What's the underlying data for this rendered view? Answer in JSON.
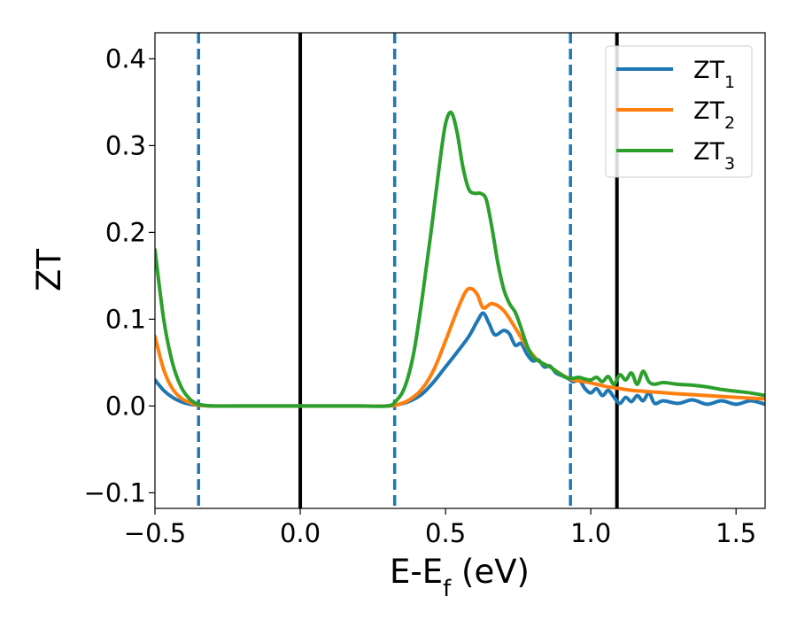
{
  "chart_data": {
    "type": "line",
    "title": "",
    "xlabel": "E-E",
    "xlabel_subscript": "f",
    "xlabel_unit": " (eV)",
    "ylabel": "ZT",
    "xlim": [
      -0.5,
      1.6
    ],
    "ylim": [
      -0.118,
      0.43
    ],
    "xticks": [
      -0.5,
      0.0,
      0.5,
      1.0,
      1.5
    ],
    "xtick_labels": [
      "−0.5",
      "0.0",
      "0.5",
      "1.0",
      "1.5"
    ],
    "yticks": [
      -0.1,
      0.0,
      0.1,
      0.2,
      0.3,
      0.4
    ],
    "ytick_labels": [
      "−0.1",
      "0.0",
      "0.1",
      "0.2",
      "0.3",
      "0.4"
    ],
    "grid": false,
    "legend_position": "top-right",
    "vertical_lines": [
      {
        "x": -0.35,
        "style": "dashed",
        "color": "#1f77b4"
      },
      {
        "x": 0.0,
        "style": "solid",
        "color": "#000000"
      },
      {
        "x": 0.325,
        "style": "dashed",
        "color": "#1f77b4"
      },
      {
        "x": 0.93,
        "style": "dashed",
        "color": "#1f77b4"
      },
      {
        "x": 1.09,
        "style": "solid",
        "color": "#000000"
      }
    ],
    "series": [
      {
        "name": "ZT",
        "name_subscript": "1",
        "color": "#1f77b4",
        "x": [
          -0.5,
          -0.47,
          -0.44,
          -0.41,
          -0.38,
          -0.35,
          -0.3,
          -0.2,
          0.0,
          0.2,
          0.3,
          0.34,
          0.38,
          0.42,
          0.46,
          0.5,
          0.54,
          0.58,
          0.61,
          0.63,
          0.65,
          0.67,
          0.7,
          0.72,
          0.74,
          0.76,
          0.78,
          0.8,
          0.82,
          0.84,
          0.86,
          0.88,
          0.9,
          0.92,
          0.94,
          0.96,
          0.98,
          1.0,
          1.02,
          1.04,
          1.06,
          1.08,
          1.1,
          1.12,
          1.14,
          1.16,
          1.18,
          1.2,
          1.22,
          1.25,
          1.3,
          1.35,
          1.4,
          1.45,
          1.5,
          1.55,
          1.6
        ],
        "y": [
          0.03,
          0.018,
          0.01,
          0.005,
          0.002,
          0.001,
          0.0,
          0.0,
          0.0,
          0.0,
          0.0,
          0.002,
          0.006,
          0.014,
          0.028,
          0.045,
          0.062,
          0.08,
          0.098,
          0.107,
          0.095,
          0.082,
          0.087,
          0.083,
          0.07,
          0.072,
          0.06,
          0.052,
          0.053,
          0.045,
          0.046,
          0.038,
          0.035,
          0.032,
          0.028,
          0.03,
          0.02,
          0.015,
          0.02,
          0.012,
          0.018,
          0.01,
          0.003,
          0.01,
          0.005,
          0.012,
          0.006,
          0.015,
          0.003,
          0.006,
          0.003,
          0.007,
          0.002,
          0.006,
          0.002,
          0.006,
          0.002
        ]
      },
      {
        "name": "ZT",
        "name_subscript": "2",
        "color": "#ff7f0e",
        "x": [
          -0.5,
          -0.47,
          -0.44,
          -0.41,
          -0.38,
          -0.35,
          -0.3,
          -0.2,
          0.0,
          0.2,
          0.3,
          0.34,
          0.38,
          0.42,
          0.46,
          0.5,
          0.54,
          0.57,
          0.59,
          0.61,
          0.63,
          0.66,
          0.7,
          0.74,
          0.78,
          0.82,
          0.86,
          0.9,
          0.94,
          0.98,
          1.02,
          1.06,
          1.1,
          1.14,
          1.18,
          1.22,
          1.26,
          1.3,
          1.35,
          1.4,
          1.45,
          1.5,
          1.55,
          1.6
        ],
        "y": [
          0.08,
          0.042,
          0.02,
          0.009,
          0.004,
          0.001,
          0.0,
          0.0,
          0.0,
          0.0,
          0.0,
          0.002,
          0.008,
          0.02,
          0.042,
          0.075,
          0.11,
          0.132,
          0.135,
          0.128,
          0.113,
          0.118,
          0.11,
          0.09,
          0.068,
          0.052,
          0.045,
          0.036,
          0.03,
          0.028,
          0.025,
          0.022,
          0.02,
          0.018,
          0.017,
          0.016,
          0.015,
          0.014,
          0.013,
          0.012,
          0.011,
          0.01,
          0.009,
          0.008
        ]
      },
      {
        "name": "ZT",
        "name_subscript": "3",
        "color": "#2ca02c",
        "x": [
          -0.5,
          -0.47,
          -0.44,
          -0.41,
          -0.38,
          -0.35,
          -0.3,
          -0.2,
          0.0,
          0.2,
          0.3,
          0.33,
          0.36,
          0.39,
          0.42,
          0.45,
          0.48,
          0.5,
          0.52,
          0.54,
          0.56,
          0.58,
          0.6,
          0.62,
          0.64,
          0.66,
          0.68,
          0.7,
          0.72,
          0.74,
          0.76,
          0.78,
          0.8,
          0.82,
          0.84,
          0.86,
          0.88,
          0.9,
          0.92,
          0.94,
          0.96,
          0.98,
          1.0,
          1.02,
          1.04,
          1.06,
          1.08,
          1.1,
          1.12,
          1.14,
          1.16,
          1.18,
          1.2,
          1.22,
          1.25,
          1.3,
          1.35,
          1.4,
          1.45,
          1.5,
          1.55,
          1.6
        ],
        "y": [
          0.18,
          0.1,
          0.05,
          0.022,
          0.008,
          0.002,
          0.0,
          0.0,
          0.0,
          0.0,
          0.0,
          0.006,
          0.022,
          0.06,
          0.125,
          0.2,
          0.28,
          0.325,
          0.338,
          0.315,
          0.275,
          0.25,
          0.245,
          0.245,
          0.238,
          0.205,
          0.165,
          0.135,
          0.118,
          0.108,
          0.09,
          0.07,
          0.057,
          0.052,
          0.048,
          0.045,
          0.04,
          0.036,
          0.032,
          0.032,
          0.033,
          0.031,
          0.03,
          0.033,
          0.028,
          0.034,
          0.025,
          0.036,
          0.03,
          0.038,
          0.025,
          0.04,
          0.028,
          0.025,
          0.027,
          0.025,
          0.024,
          0.022,
          0.019,
          0.017,
          0.015,
          0.012
        ]
      }
    ]
  }
}
